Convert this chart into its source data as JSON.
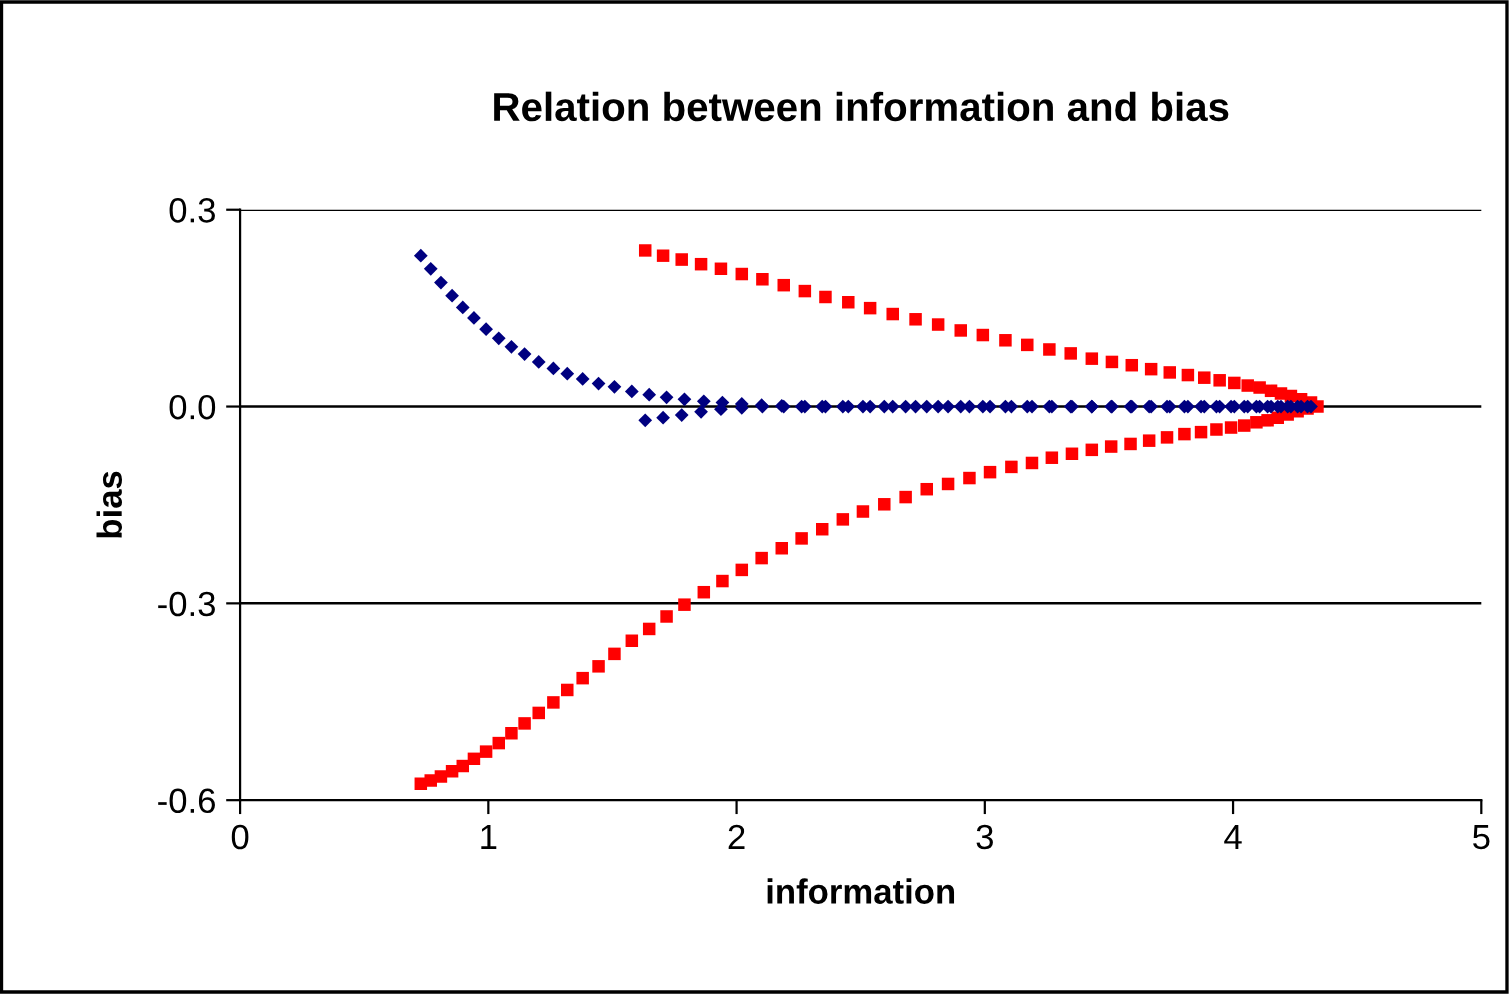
{
  "chart_data": {
    "type": "scatter",
    "title": "Relation between information and bias",
    "xlabel": "information",
    "ylabel": "bias",
    "xlim": [
      0,
      5
    ],
    "xticks": [
      0,
      1,
      2,
      3,
      4,
      5
    ],
    "ylim": [
      -0.6,
      0.3
    ],
    "yticks": [
      {
        "value": 0.3,
        "label": "0.3"
      },
      {
        "value": 0,
        "label": "0.0"
      },
      {
        "value": -0.3,
        "label": "-0.3"
      },
      {
        "value": -0.6,
        "label": "-0.6"
      }
    ],
    "grid": "y",
    "legend": false,
    "series": [
      {
        "color": "#ff0000",
        "marker": "square",
        "x": [
          1.632,
          1.704,
          1.779,
          1.857,
          1.937,
          2.021,
          2.104,
          2.19,
          2.275,
          2.358,
          2.45,
          2.538,
          2.629,
          2.721,
          2.812,
          2.903,
          2.992,
          3.083,
          3.171,
          3.26,
          3.346,
          3.431,
          3.512,
          3.592,
          3.67,
          3.745,
          3.818,
          3.884,
          3.946,
          4.005,
          4.059,
          4.107,
          4.153,
          4.193,
          4.233,
          4.274,
          4.314,
          4.34,
          4.3,
          4.26,
          4.22,
          4.18,
          4.139,
          4.094,
          4.045,
          3.992,
          3.933,
          3.871,
          3.804,
          3.734,
          3.662,
          3.587,
          3.509,
          3.431,
          3.351,
          3.27,
          3.19,
          3.107,
          3.021,
          2.938,
          2.852,
          2.766,
          2.681,
          2.595,
          2.509,
          2.428,
          2.345,
          2.262,
          2.182,
          2.101,
          2.021,
          1.943,
          1.868,
          1.79,
          1.718,
          1.648,
          1.578,
          1.508,
          1.444,
          1.38,
          1.318,
          1.262,
          1.203,
          1.146,
          1.093,
          1.042,
          0.991,
          0.942,
          0.897,
          0.854,
          0.809,
          0.768,
          0.728
        ],
        "values": [
          0.238,
          0.23,
          0.224,
          0.217,
          0.21,
          0.202,
          0.194,
          0.185,
          0.176,
          0.167,
          0.159,
          0.15,
          0.141,
          0.133,
          0.125,
          0.116,
          0.109,
          0.101,
          0.094,
          0.087,
          0.081,
          0.073,
          0.068,
          0.063,
          0.057,
          0.052,
          0.048,
          0.044,
          0.04,
          0.036,
          0.032,
          0.029,
          0.024,
          0.02,
          0.016,
          0.011,
          0.006,
          0,
          -0.003,
          -0.007,
          -0.012,
          -0.017,
          -0.021,
          -0.024,
          -0.029,
          -0.032,
          -0.035,
          -0.039,
          -0.042,
          -0.047,
          -0.052,
          -0.057,
          -0.061,
          -0.066,
          -0.072,
          -0.078,
          -0.086,
          -0.092,
          -0.1,
          -0.109,
          -0.118,
          -0.126,
          -0.138,
          -0.149,
          -0.16,
          -0.172,
          -0.187,
          -0.201,
          -0.216,
          -0.231,
          -0.249,
          -0.266,
          -0.283,
          -0.302,
          -0.32,
          -0.339,
          -0.357,
          -0.377,
          -0.396,
          -0.414,
          -0.432,
          -0.451,
          -0.467,
          -0.483,
          -0.498,
          -0.513,
          -0.526,
          -0.537,
          -0.548,
          -0.556,
          -0.564,
          -0.57,
          -0.575
        ]
      },
      {
        "color": "#000080",
        "marker": "diamond",
        "x": [
          0.728,
          0.768,
          0.809,
          0.854,
          0.897,
          0.942,
          0.991,
          1.042,
          1.093,
          1.146,
          1.203,
          1.262,
          1.318,
          1.38,
          1.444,
          1.508,
          1.578,
          1.648,
          1.718,
          1.79,
          1.868,
          1.943,
          2.021,
          2.101,
          2.182,
          2.262,
          2.345,
          2.428,
          2.509,
          2.595,
          2.681,
          2.766,
          2.852,
          2.938,
          3.021,
          3.107,
          3.19,
          3.27,
          3.351,
          3.431,
          3.509,
          3.587,
          3.662,
          3.734,
          3.804,
          3.871,
          3.933,
          3.992,
          4.045,
          4.094,
          4.139,
          4.18,
          4.22,
          4.26,
          4.3,
          1.632,
          1.704,
          1.779,
          1.857,
          1.937,
          2.021,
          2.104,
          2.19,
          2.275,
          2.358,
          2.45,
          2.538,
          2.629,
          2.721,
          2.812,
          2.903,
          2.992,
          3.083,
          3.171,
          3.26,
          3.346,
          3.431,
          3.512,
          3.592,
          3.67,
          3.745,
          3.818,
          3.884,
          3.946,
          4.005,
          4.059,
          4.107,
          4.153,
          4.193,
          4.233,
          4.274,
          4.314
        ],
        "values": [
          0.23,
          0.21,
          0.189,
          0.169,
          0.151,
          0.135,
          0.118,
          0.104,
          0.091,
          0.08,
          0.068,
          0.058,
          0.05,
          0.042,
          0.035,
          0.03,
          0.023,
          0.018,
          0.014,
          0.011,
          0.008,
          0.006,
          0.004,
          0.002,
          0.001,
          0,
          0,
          0,
          0,
          0,
          0,
          0,
          0,
          0,
          0,
          0,
          0,
          0,
          0,
          0,
          0,
          0,
          0,
          0,
          0,
          0,
          0,
          0,
          0,
          0,
          0,
          0,
          0,
          0,
          0,
          -0.021,
          -0.017,
          -0.013,
          -0.008,
          -0.004,
          -0.002,
          0,
          0,
          0,
          0,
          0,
          0,
          0,
          0,
          0,
          0,
          0,
          0,
          0,
          0,
          0,
          0,
          0,
          0,
          0,
          0,
          0,
          0,
          0,
          0,
          0,
          0,
          0,
          0,
          0,
          0,
          0
        ]
      }
    ]
  }
}
